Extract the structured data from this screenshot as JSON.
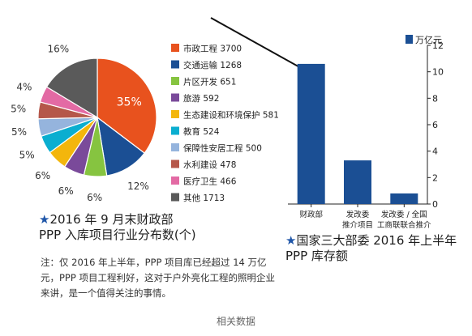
{
  "chart_data": [
    {
      "type": "pie",
      "title": "2016 年 9 月末财政部",
      "subtitle": "PPP 入库项目行业分布数(个)",
      "slices": [
        {
          "label": "市政工程",
          "value": 3700,
          "percent_label": "35%",
          "color": "#e8521e"
        },
        {
          "label": "交通运输",
          "value": 1268,
          "percent_label": "12%",
          "color": "#1b4f94"
        },
        {
          "label": "片区开发",
          "value": 651,
          "percent_label": "6%",
          "color": "#86c440"
        },
        {
          "label": "旅游",
          "value": 592,
          "percent_label": "6%",
          "color": "#7a4a9a"
        },
        {
          "label": "生态建设和环境保护",
          "value": 581,
          "percent_label": "6%",
          "color": "#f3b60c"
        },
        {
          "label": "教育",
          "value": 524,
          "percent_label": "5%",
          "color": "#0aaed0"
        },
        {
          "label": "保障性安居工程",
          "value": 500,
          "percent_label": "5%",
          "color": "#95b4dd"
        },
        {
          "label": "水利建设",
          "value": 478,
          "percent_label": "5%",
          "color": "#b5574a"
        },
        {
          "label": "医疗卫生",
          "value": 466,
          "percent_label": "4%",
          "color": "#e36aa4"
        },
        {
          "label": "其他",
          "value": 1713,
          "percent_label": "16%",
          "color": "#5a5a5a"
        }
      ]
    },
    {
      "type": "bar",
      "title": "国家三大部委 2016 年上半年",
      "subtitle": "PPP 库存额",
      "unit": "万亿元",
      "categories": [
        "财政部",
        "发改委\n推介项目",
        "发改委 / 全国\n工商联联合推介"
      ],
      "values": [
        10.6,
        3.3,
        0.8
      ],
      "ylim": [
        0,
        12
      ],
      "yticks": [
        0,
        2,
        4,
        6,
        8,
        10,
        12
      ],
      "color": "#1b4f94",
      "axis_position": "right"
    }
  ],
  "note": "注：仅 2016 年上半年，PPP 项目库已经超过 14 万亿元，PPP 项目工程利好，这对于户外亮化工程的照明企业来讲，是一个值得关注的事情。",
  "caption": "相关数据"
}
